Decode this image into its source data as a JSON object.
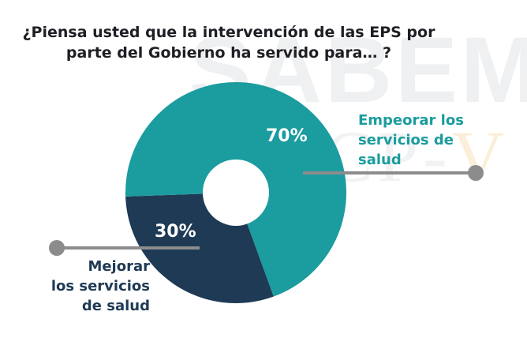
{
  "title_lines": [
    "¿Piensa usted que la intervención de las EPS por",
    "parte del Gobierno ha servido para… ?"
  ],
  "watermark": {
    "line1": "SABEM",
    "line2_main": "INVCP-",
    "line2_accent": "V A"
  },
  "colors": {
    "empeorar": "#1b9c9e",
    "mejorar": "#1e3a55",
    "hole": "#ffffff",
    "empeorar_label": "#1b9c9e",
    "mejorar_label": "#1e3a55",
    "connector": "#8c8c8c",
    "title": "#1e1e24"
  },
  "chart_data": {
    "type": "pie",
    "variant": "donut",
    "title": "¿Piensa usted que la intervención de las EPS por parte del Gobierno ha servido para… ?",
    "slices": [
      {
        "label": "Empeorar los servicios de salud",
        "label_lines": [
          "Empeorar los",
          "servicios de",
          "salud"
        ],
        "value": 70,
        "display": "70%"
      },
      {
        "label": "Mejorar los servicios de salud",
        "label_lines": [
          "Mejorar",
          "los servicios",
          "de salud"
        ],
        "value": 30,
        "display": "30%"
      }
    ]
  }
}
